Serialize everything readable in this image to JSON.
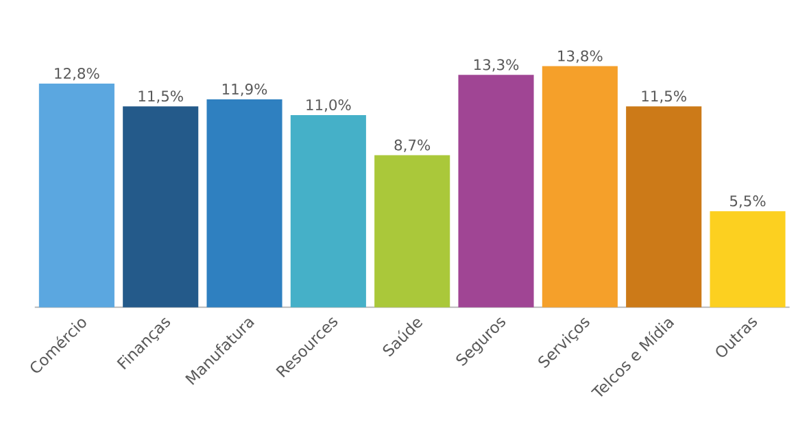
{
  "chart_data": {
    "type": "bar",
    "categories": [
      "Comércio",
      "Finanças",
      "Manufatura",
      "Resources",
      "Saúde",
      "Seguros",
      "Serviços",
      "Telcos e Mídia",
      "Outras"
    ],
    "values": [
      12.8,
      11.5,
      11.9,
      11.0,
      8.7,
      13.3,
      13.8,
      11.5,
      5.5
    ],
    "value_labels": [
      "12,8%",
      "11,5%",
      "11,9%",
      "11,0%",
      "8,7%",
      "13,3%",
      "13,8%",
      "11,5%",
      "5,5%"
    ],
    "colors": [
      "#5ba7e0",
      "#245a8a",
      "#2f80c0",
      "#45b0c8",
      "#aac83a",
      "#a04594",
      "#f5a02a",
      "#cc7a18",
      "#fcd020"
    ]
  }
}
